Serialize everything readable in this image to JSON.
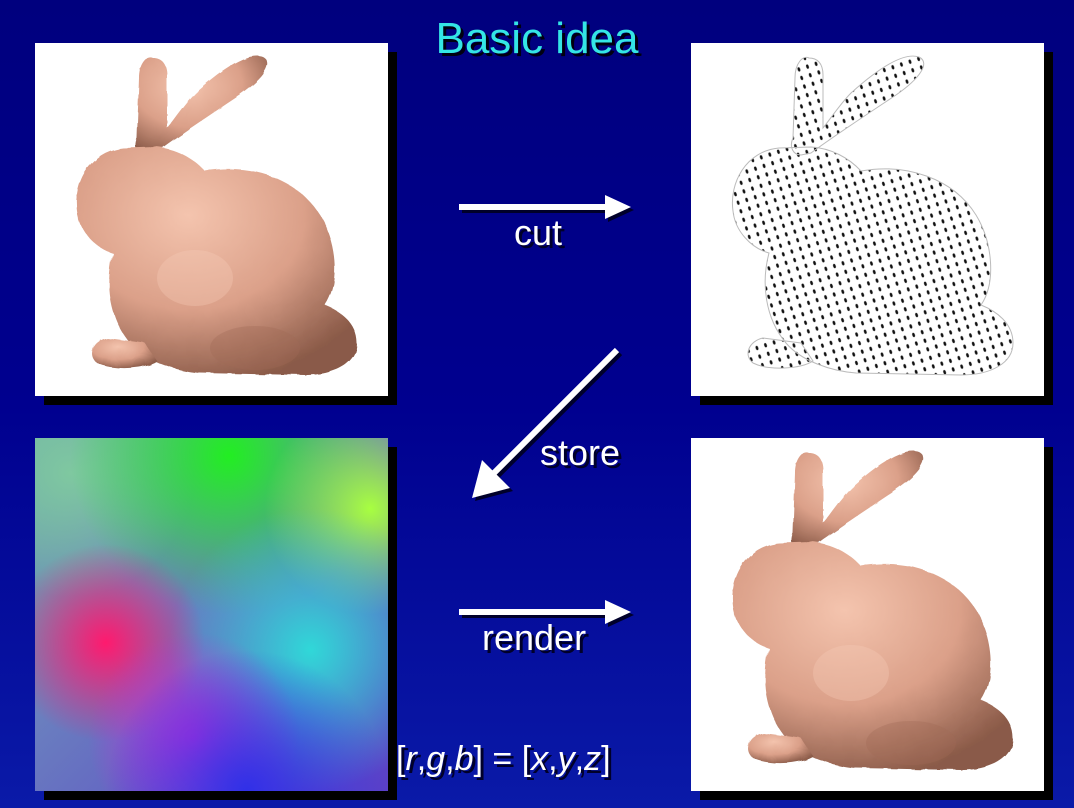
{
  "title": "Basic idea",
  "steps": {
    "cut": "cut",
    "store": "store",
    "render": "render"
  },
  "formula": {
    "open": "[",
    "r": "r",
    "comma1": ",",
    "g": "g",
    "comma2": ",",
    "b": "b",
    "mid": "] = [",
    "x": "x",
    "comma3": ",",
    "y": "y",
    "comma4": ",",
    "z": "z",
    "close": "]"
  },
  "colors": {
    "background": "#00008f",
    "title": "#34e5e5",
    "bunny": "#e2a58e",
    "arrow": "#ffffff"
  },
  "icons": [
    "bunny-shaded",
    "bunny-wireframe",
    "geometry-image",
    "bunny-rendered",
    "arrow-right",
    "arrow-down-left"
  ]
}
